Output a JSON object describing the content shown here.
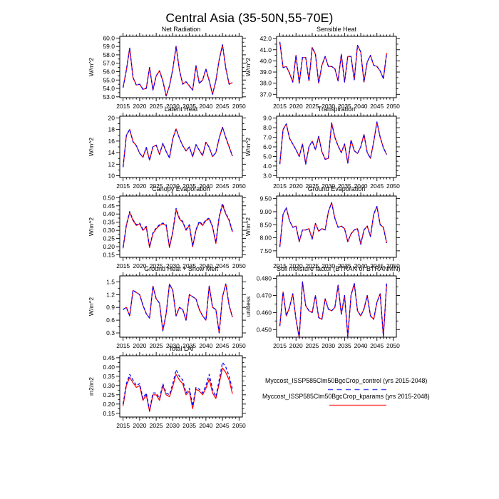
{
  "chart_data": {
    "type": "line",
    "suptitle": "Central Asia (35-50N,55-70E)",
    "x_years": [
      2015,
      2016,
      2017,
      2018,
      2019,
      2020,
      2021,
      2022,
      2023,
      2024,
      2025,
      2026,
      2027,
      2028,
      2029,
      2030,
      2031,
      2032,
      2033,
      2034,
      2035,
      2036,
      2037,
      2038,
      2039,
      2040,
      2041,
      2042,
      2043,
      2044,
      2045,
      2046,
      2047,
      2048
    ],
    "xlim": [
      2014,
      2051
    ],
    "xticks": [
      2015,
      2020,
      2025,
      2030,
      2035,
      2040,
      2045,
      2050
    ],
    "legend": [
      {
        "name": "control",
        "label": "Myccost_ISSP585Clm50BgcCrop_control (yrs 2015-2048)",
        "color": "#0000ff",
        "style": "dashed"
      },
      {
        "name": "kparams",
        "label": "Myccost_ISSP585Clm50BgcCrop_kparams (yrs 2015-2048)",
        "color": "#ff0000",
        "style": "solid"
      }
    ],
    "panels": [
      {
        "title": "Net Radiation",
        "ylabel": "W/m^2",
        "ylim": [
          52.9,
          60.2
        ],
        "yticks": [
          53,
          54,
          55,
          56,
          57,
          58,
          59,
          60
        ],
        "ytick_decimals": 1,
        "series": [
          {
            "name": "control",
            "color": "#0000ff",
            "dash": true,
            "values": [
              54.1,
              56.2,
              58.8,
              55.3,
              54.4,
              54.5,
              53.9,
              54.0,
              56.5,
              53.8,
              55.5,
              56.1,
              54.9,
              53.1,
              54.3,
              56.3,
              59.0,
              56.2,
              54.5,
              54.8,
              54.3,
              53.8,
              56.7,
              54.6,
              55.0,
              56.3,
              54.9,
              53.3,
              54.9,
              57.4,
              59.2,
              56.4,
              54.5,
              54.7
            ]
          },
          {
            "name": "kparams",
            "color": "#ff0000",
            "dash": false,
            "values": [
              54.1,
              56.2,
              58.8,
              55.3,
              54.4,
              54.5,
              53.9,
              54.0,
              56.5,
              53.8,
              55.5,
              56.1,
              54.9,
              53.1,
              54.3,
              56.3,
              59.0,
              56.2,
              54.5,
              54.8,
              54.3,
              53.8,
              56.7,
              54.6,
              55.0,
              56.3,
              54.9,
              53.3,
              54.9,
              57.4,
              59.2,
              56.4,
              54.5,
              54.7
            ]
          }
        ]
      },
      {
        "title": "Sensible Heat",
        "ylabel": "W/m^2",
        "ylim": [
          36.7,
          42.2
        ],
        "yticks": [
          37,
          38,
          39,
          40,
          41,
          42
        ],
        "ytick_decimals": 1,
        "series": [
          {
            "name": "control",
            "color": "#0000ff",
            "dash": true,
            "values": [
              41.7,
              39.4,
              39.5,
              38.9,
              38.1,
              40.5,
              38.0,
              40.3,
              40.3,
              38.2,
              41.2,
              40.6,
              38.0,
              39.6,
              40.4,
              39.5,
              39.5,
              39.3,
              38.2,
              40.6,
              38.1,
              40.4,
              40.4,
              38.3,
              41.4,
              40.8,
              38.1,
              39.9,
              40.5,
              39.6,
              39.5,
              39.1,
              38.4,
              40.7
            ]
          },
          {
            "name": "kparams",
            "color": "#ff0000",
            "dash": false,
            "values": [
              41.7,
              39.4,
              39.5,
              38.9,
              38.1,
              40.5,
              38.0,
              40.3,
              40.3,
              38.2,
              41.2,
              40.6,
              38.0,
              39.6,
              40.4,
              39.5,
              39.5,
              39.3,
              38.2,
              40.6,
              38.1,
              40.4,
              40.4,
              38.3,
              41.4,
              40.8,
              38.1,
              39.9,
              40.5,
              39.6,
              39.5,
              39.1,
              38.4,
              40.7
            ]
          }
        ]
      },
      {
        "title": "Latent Heat",
        "ylabel": "W/m^2",
        "ylim": [
          9.7,
          20.3
        ],
        "yticks": [
          10,
          12,
          14,
          16,
          18,
          20
        ],
        "ytick_decimals": 0,
        "series": [
          {
            "name": "control",
            "color": "#0000ff",
            "dash": true,
            "values": [
              11.5,
              17.0,
              18.0,
              15.9,
              15.2,
              13.9,
              13.2,
              14.9,
              12.7,
              15.0,
              15.3,
              13.7,
              15.6,
              14.2,
              13.1,
              16.4,
              18.1,
              16.5,
              15.2,
              14.3,
              15.0,
              13.3,
              15.4,
              14.4,
              13.5,
              15.8,
              14.9,
              13.3,
              14.0,
              16.5,
              18.4,
              16.6,
              15.0,
              13.4
            ]
          },
          {
            "name": "kparams",
            "color": "#ff0000",
            "dash": false,
            "values": [
              11.5,
              17.0,
              18.0,
              15.9,
              15.2,
              13.9,
              13.2,
              14.9,
              12.7,
              15.0,
              15.3,
              13.7,
              15.6,
              14.2,
              13.1,
              16.4,
              18.1,
              16.5,
              15.2,
              14.3,
              15.0,
              13.3,
              15.4,
              14.4,
              13.5,
              15.8,
              14.9,
              13.3,
              14.0,
              16.5,
              18.4,
              16.6,
              15.0,
              13.4
            ]
          }
        ]
      },
      {
        "title": "Transpiration",
        "ylabel": "W/m^2",
        "ylim": [
          2.8,
          9.2
        ],
        "yticks": [
          3,
          4,
          5,
          6,
          7,
          8,
          9
        ],
        "ytick_decimals": 1,
        "series": [
          {
            "name": "control",
            "color": "#0000ff",
            "dash": true,
            "values": [
              4.2,
              7.8,
              8.4,
              6.9,
              6.3,
              5.7,
              5.0,
              6.3,
              4.2,
              6.0,
              6.6,
              5.7,
              7.1,
              5.5,
              4.7,
              4.8,
              8.5,
              7.0,
              6.1,
              5.4,
              6.3,
              4.3,
              6.7,
              5.6,
              5.3,
              6.0,
              7.3,
              5.4,
              4.8,
              6.5,
              8.6,
              7.0,
              5.9,
              5.2
            ]
          },
          {
            "name": "kparams",
            "color": "#ff0000",
            "dash": false,
            "values": [
              4.2,
              7.8,
              8.4,
              6.9,
              6.3,
              5.7,
              5.0,
              6.3,
              4.2,
              6.0,
              6.6,
              5.7,
              7.1,
              5.5,
              4.7,
              4.8,
              8.5,
              7.0,
              6.1,
              5.4,
              6.3,
              4.3,
              6.7,
              5.6,
              5.3,
              6.0,
              7.3,
              5.4,
              4.8,
              6.5,
              8.6,
              7.0,
              5.9,
              5.2
            ]
          }
        ]
      },
      {
        "title": "Canopy Evaporation",
        "ylabel": "W/m^2",
        "ylim": [
          0.135,
          0.51
        ],
        "yticks": [
          0.15,
          0.2,
          0.25,
          0.3,
          0.35,
          0.4,
          0.45,
          0.5
        ],
        "ytick_decimals": 2,
        "series": [
          {
            "name": "control",
            "color": "#0000ff",
            "dash": true,
            "values": [
              0.195,
              0.335,
              0.415,
              0.365,
              0.335,
              0.345,
              0.305,
              0.325,
              0.2,
              0.285,
              0.315,
              0.335,
              0.345,
              0.335,
              0.2,
              0.295,
              0.435,
              0.375,
              0.355,
              0.305,
              0.335,
              0.205,
              0.305,
              0.355,
              0.335,
              0.365,
              0.375,
              0.325,
              0.225,
              0.385,
              0.465,
              0.405,
              0.365,
              0.295
            ]
          },
          {
            "name": "kparams",
            "color": "#ff0000",
            "dash": false,
            "values": [
              0.19,
              0.33,
              0.41,
              0.36,
              0.33,
              0.34,
              0.3,
              0.32,
              0.195,
              0.28,
              0.31,
              0.33,
              0.34,
              0.33,
              0.195,
              0.29,
              0.425,
              0.37,
              0.35,
              0.3,
              0.33,
              0.2,
              0.3,
              0.35,
              0.33,
              0.36,
              0.37,
              0.32,
              0.22,
              0.38,
              0.455,
              0.4,
              0.36,
              0.29
            ]
          }
        ]
      },
      {
        "title": "Ground Evaporation",
        "ylabel": "W/m^2",
        "ylim": [
          7.25,
          9.6
        ],
        "yticks": [
          7.5,
          8.0,
          8.5,
          9.0,
          9.5
        ],
        "ytick_decimals": 2,
        "series": [
          {
            "name": "control",
            "color": "#0000ff",
            "dash": true,
            "values": [
              7.65,
              8.9,
              9.15,
              8.65,
              8.4,
              8.45,
              7.85,
              8.3,
              8.3,
              8.35,
              7.95,
              8.55,
              8.25,
              8.35,
              8.3,
              9.0,
              9.35,
              8.75,
              8.4,
              8.45,
              8.35,
              7.85,
              8.15,
              8.3,
              8.35,
              7.75,
              8.3,
              8.45,
              8.05,
              8.9,
              9.2,
              8.5,
              8.4,
              7.8
            ]
          },
          {
            "name": "kparams",
            "color": "#ff0000",
            "dash": false,
            "values": [
              7.65,
              8.9,
              9.15,
              8.65,
              8.4,
              8.45,
              7.85,
              8.3,
              8.3,
              8.35,
              7.95,
              8.55,
              8.25,
              8.35,
              8.3,
              9.0,
              9.35,
              8.75,
              8.4,
              8.45,
              8.35,
              7.85,
              8.15,
              8.3,
              8.35,
              7.75,
              8.3,
              8.45,
              8.05,
              8.9,
              9.2,
              8.5,
              8.4,
              7.8
            ]
          }
        ]
      },
      {
        "title": "Ground Heat + Snow Melt",
        "ylabel": "W/m^2",
        "ylim": [
          0.2,
          1.64
        ],
        "yticks": [
          0.3,
          0.6,
          0.9,
          1.2,
          1.5
        ],
        "ytick_decimals": 1,
        "series": [
          {
            "name": "control",
            "color": "#0000ff",
            "dash": true,
            "values": [
              0.85,
              0.9,
              0.7,
              1.3,
              1.25,
              1.2,
              0.95,
              0.75,
              0.65,
              1.4,
              1.1,
              1.0,
              0.35,
              0.75,
              1.45,
              1.3,
              0.7,
              0.9,
              0.85,
              0.6,
              1.2,
              1.15,
              1.1,
              0.85,
              0.7,
              0.6,
              1.4,
              0.9,
              0.85,
              0.3,
              1.15,
              1.45,
              0.95,
              0.67
            ]
          },
          {
            "name": "kparams",
            "color": "#ff0000",
            "dash": false,
            "values": [
              0.85,
              0.9,
              0.7,
              1.3,
              1.25,
              1.2,
              0.95,
              0.75,
              0.65,
              1.4,
              1.1,
              1.0,
              0.35,
              0.75,
              1.45,
              1.3,
              0.7,
              0.9,
              0.85,
              0.6,
              1.2,
              1.15,
              1.1,
              0.85,
              0.7,
              0.6,
              1.4,
              0.9,
              0.85,
              0.3,
              1.15,
              1.45,
              0.95,
              0.67
            ]
          }
        ]
      },
      {
        "title": "Soil moisture factor (BTRAN or BTRANMN)",
        "ylabel": "unitless",
        "ylim": [
          0.4455,
          0.4815
        ],
        "yticks": [
          0.45,
          0.46,
          0.47,
          0.48
        ],
        "ytick_decimals": 3,
        "series": [
          {
            "name": "control",
            "color": "#0000ff",
            "dash": true,
            "values": [
              0.452,
              0.472,
              0.458,
              0.463,
              0.471,
              0.456,
              0.445,
              0.478,
              0.464,
              0.461,
              0.46,
              0.47,
              0.457,
              0.456,
              0.468,
              0.462,
              0.461,
              0.463,
              0.476,
              0.459,
              0.47,
              0.446,
              0.47,
              0.477,
              0.461,
              0.458,
              0.462,
              0.47,
              0.458,
              0.456,
              0.466,
              0.471,
              0.446,
              0.477
            ]
          },
          {
            "name": "kparams",
            "color": "#ff0000",
            "dash": false,
            "values": [
              0.452,
              0.472,
              0.458,
              0.463,
              0.471,
              0.456,
              0.445,
              0.478,
              0.464,
              0.461,
              0.46,
              0.47,
              0.457,
              0.456,
              0.468,
              0.462,
              0.461,
              0.463,
              0.476,
              0.459,
              0.47,
              0.446,
              0.47,
              0.477,
              0.461,
              0.458,
              0.462,
              0.47,
              0.458,
              0.456,
              0.466,
              0.471,
              0.446,
              0.477
            ]
          }
        ]
      },
      {
        "title": "Total LAI",
        "ylabel": "m2/m2",
        "ylim": [
          0.13,
          0.461
        ],
        "yticks": [
          0.15,
          0.2,
          0.25,
          0.3,
          0.35,
          0.4,
          0.45
        ],
        "ytick_decimals": 2,
        "series": [
          {
            "name": "control",
            "color": "#0000ff",
            "dash": true,
            "values": [
              0.2,
              0.31,
              0.36,
              0.33,
              0.3,
              0.31,
              0.23,
              0.26,
              0.165,
              0.26,
              0.26,
              0.23,
              0.31,
              0.26,
              0.25,
              0.31,
              0.385,
              0.35,
              0.33,
              0.26,
              0.285,
              0.19,
              0.29,
              0.28,
              0.26,
              0.3,
              0.36,
              0.28,
              0.24,
              0.33,
              0.425,
              0.4,
              0.35,
              0.28
            ]
          },
          {
            "name": "kparams",
            "color": "#ff0000",
            "dash": false,
            "values": [
              0.19,
              0.3,
              0.345,
              0.315,
              0.29,
              0.3,
              0.22,
              0.25,
              0.16,
              0.25,
              0.25,
              0.22,
              0.3,
              0.25,
              0.24,
              0.295,
              0.36,
              0.33,
              0.31,
              0.25,
              0.27,
              0.175,
              0.28,
              0.27,
              0.25,
              0.285,
              0.335,
              0.26,
              0.23,
              0.31,
              0.395,
              0.37,
              0.33,
              0.255
            ]
          }
        ]
      }
    ]
  }
}
